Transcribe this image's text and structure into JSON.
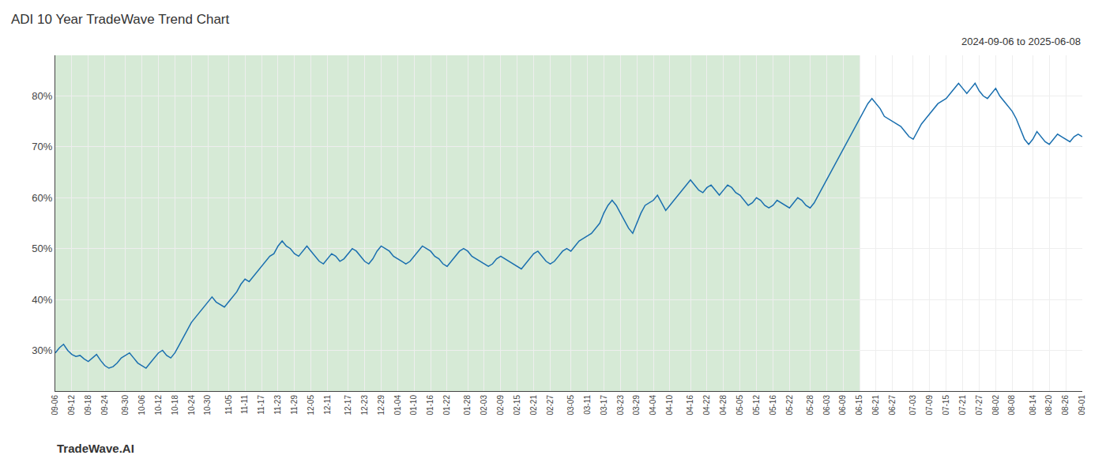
{
  "chart_data": {
    "type": "line",
    "title": "ADI 10 Year TradeWave Trend Chart",
    "subtitle": "2024-09-06 to 2025-06-08",
    "annotations": [
      {
        "text": "TradeWave.AI"
      }
    ],
    "categories": [
      "09-06",
      null,
      null,
      null,
      "09-12",
      null,
      null,
      null,
      "09-18",
      null,
      null,
      null,
      "09-24",
      null,
      null,
      null,
      null,
      "09-30",
      null,
      null,
      null,
      "10-06",
      null,
      null,
      null,
      "10-12",
      null,
      null,
      null,
      "10-18",
      null,
      null,
      null,
      "10-24",
      null,
      null,
      null,
      "10-30",
      null,
      null,
      null,
      null,
      "11-05",
      null,
      null,
      null,
      "11-11",
      null,
      null,
      null,
      "11-17",
      null,
      null,
      null,
      "11-23",
      null,
      null,
      null,
      "11-29",
      null,
      null,
      null,
      "12-05",
      null,
      null,
      null,
      "12-11",
      null,
      null,
      null,
      null,
      "12-17",
      null,
      null,
      null,
      "12-23",
      null,
      null,
      null,
      "12-29",
      null,
      null,
      null,
      "01-04",
      null,
      null,
      null,
      "01-10",
      null,
      null,
      null,
      "01-16",
      null,
      null,
      null,
      "01-22",
      null,
      null,
      null,
      null,
      "01-28",
      null,
      null,
      null,
      "02-03",
      null,
      null,
      null,
      "02-09",
      null,
      null,
      null,
      "02-15",
      null,
      null,
      null,
      "02-21",
      null,
      null,
      null,
      "02-27",
      null,
      null,
      null,
      null,
      "03-05",
      null,
      null,
      null,
      "03-11",
      null,
      null,
      null,
      "03-17",
      null,
      null,
      null,
      "03-23",
      null,
      null,
      null,
      "03-29",
      null,
      null,
      null,
      "04-04",
      null,
      null,
      null,
      "04-10",
      null,
      null,
      null,
      null,
      "04-16",
      null,
      null,
      null,
      "04-22",
      null,
      null,
      null,
      "04-28",
      null,
      null,
      null,
      "05-05",
      null,
      null,
      null,
      "05-12",
      null,
      null,
      null,
      "05-16",
      null,
      null,
      null,
      "05-22",
      null,
      null,
      null,
      null,
      "05-28",
      null,
      null,
      null,
      "06-03",
      null,
      null,
      null,
      "06-09",
      null,
      null,
      null,
      "06-15",
      null,
      null,
      null,
      "06-21",
      null,
      null,
      null,
      "06-27",
      null,
      null,
      null,
      null,
      "07-03",
      null,
      null,
      null,
      "07-09",
      null,
      null,
      null,
      "07-15",
      null,
      null,
      null,
      "07-21",
      null,
      null,
      null,
      "07-27",
      null,
      null,
      null,
      "08-02",
      null,
      null,
      null,
      "08-08",
      null,
      null,
      null,
      null,
      "08-14",
      null,
      null,
      null,
      "08-20",
      null,
      null,
      null,
      "08-26",
      null,
      null,
      null,
      "09-01"
    ],
    "values": [
      29.5,
      30.5,
      31.2,
      30.0,
      29.2,
      28.8,
      29.0,
      28.3,
      27.8,
      28.5,
      29.2,
      28.0,
      27.0,
      26.5,
      26.8,
      27.5,
      28.5,
      29.0,
      29.5,
      28.5,
      27.5,
      27.0,
      26.5,
      27.5,
      28.5,
      29.5,
      30.0,
      29.0,
      28.5,
      29.5,
      31.0,
      32.5,
      34.0,
      35.5,
      36.5,
      37.5,
      38.5,
      39.5,
      40.5,
      39.5,
      39.0,
      38.5,
      39.5,
      40.5,
      41.5,
      43.0,
      44.0,
      43.5,
      44.5,
      45.5,
      46.5,
      47.5,
      48.5,
      49.0,
      50.5,
      51.5,
      50.5,
      50.0,
      49.0,
      48.5,
      49.5,
      50.5,
      49.5,
      48.5,
      47.5,
      47.0,
      48.0,
      49.0,
      48.5,
      47.5,
      48.0,
      49.0,
      50.0,
      49.5,
      48.5,
      47.5,
      47.0,
      48.0,
      49.5,
      50.5,
      50.0,
      49.5,
      48.5,
      48.0,
      47.5,
      47.0,
      47.5,
      48.5,
      49.5,
      50.5,
      50.0,
      49.5,
      48.5,
      48.0,
      47.0,
      46.5,
      47.5,
      48.5,
      49.5,
      50.0,
      49.5,
      48.5,
      48.0,
      47.5,
      47.0,
      46.5,
      47.0,
      48.0,
      48.5,
      48.0,
      47.5,
      47.0,
      46.5,
      46.0,
      47.0,
      48.0,
      49.0,
      49.5,
      48.5,
      47.5,
      47.0,
      47.5,
      48.5,
      49.5,
      50.0,
      49.5,
      50.5,
      51.5,
      52.0,
      52.5,
      53.0,
      54.0,
      55.0,
      57.0,
      58.5,
      59.5,
      58.5,
      57.0,
      55.5,
      54.0,
      53.0,
      55.0,
      57.0,
      58.5,
      59.0,
      59.5,
      60.5,
      59.0,
      57.5,
      58.5,
      59.5,
      60.5,
      61.5,
      62.5,
      63.5,
      62.5,
      61.5,
      61.0,
      62.0,
      62.5,
      61.5,
      60.5,
      61.5,
      62.5,
      62.0,
      61.0,
      60.5,
      59.5,
      58.5,
      59.0,
      60.0,
      59.5,
      58.5,
      58.0,
      58.5,
      59.5,
      59.0,
      58.5,
      58.0,
      59.0,
      60.0,
      59.5,
      58.5,
      58.0,
      59.0,
      60.5,
      62.0,
      63.5,
      65.0,
      66.5,
      68.0,
      69.5,
      71.0,
      72.5,
      74.0,
      75.5,
      77.0,
      78.5,
      79.5,
      78.5,
      77.5,
      76.0,
      75.5,
      75.0,
      74.5,
      74.0,
      73.0,
      72.0,
      71.5,
      73.0,
      74.5,
      75.5,
      76.5,
      77.5,
      78.5,
      79.0,
      79.5,
      80.5,
      81.5,
      82.5,
      81.5,
      80.5,
      81.5,
      82.5,
      81.0,
      80.0,
      79.5,
      80.5,
      81.5,
      80.0,
      79.0,
      78.0,
      77.0,
      75.5,
      73.5,
      71.5,
      70.5,
      71.5,
      73.0,
      72.0,
      71.0,
      70.5,
      71.5,
      72.5,
      72.0,
      71.5,
      71.0,
      72.0,
      72.5,
      72.0
    ],
    "color": "#1a6faf",
    "spans": [
      {
        "from": "09-06",
        "to": "06-15",
        "color": "#d6ead6"
      }
    ],
    "ylim": [
      22,
      88
    ],
    "yticks": [
      {
        "value": 30,
        "label": "30%"
      },
      {
        "value": 40,
        "label": "40%"
      },
      {
        "value": 50,
        "label": "50%"
      },
      {
        "value": 60,
        "label": "60%"
      },
      {
        "value": 70,
        "label": "70%"
      },
      {
        "value": 80,
        "label": "80%"
      }
    ],
    "grid": true
  }
}
